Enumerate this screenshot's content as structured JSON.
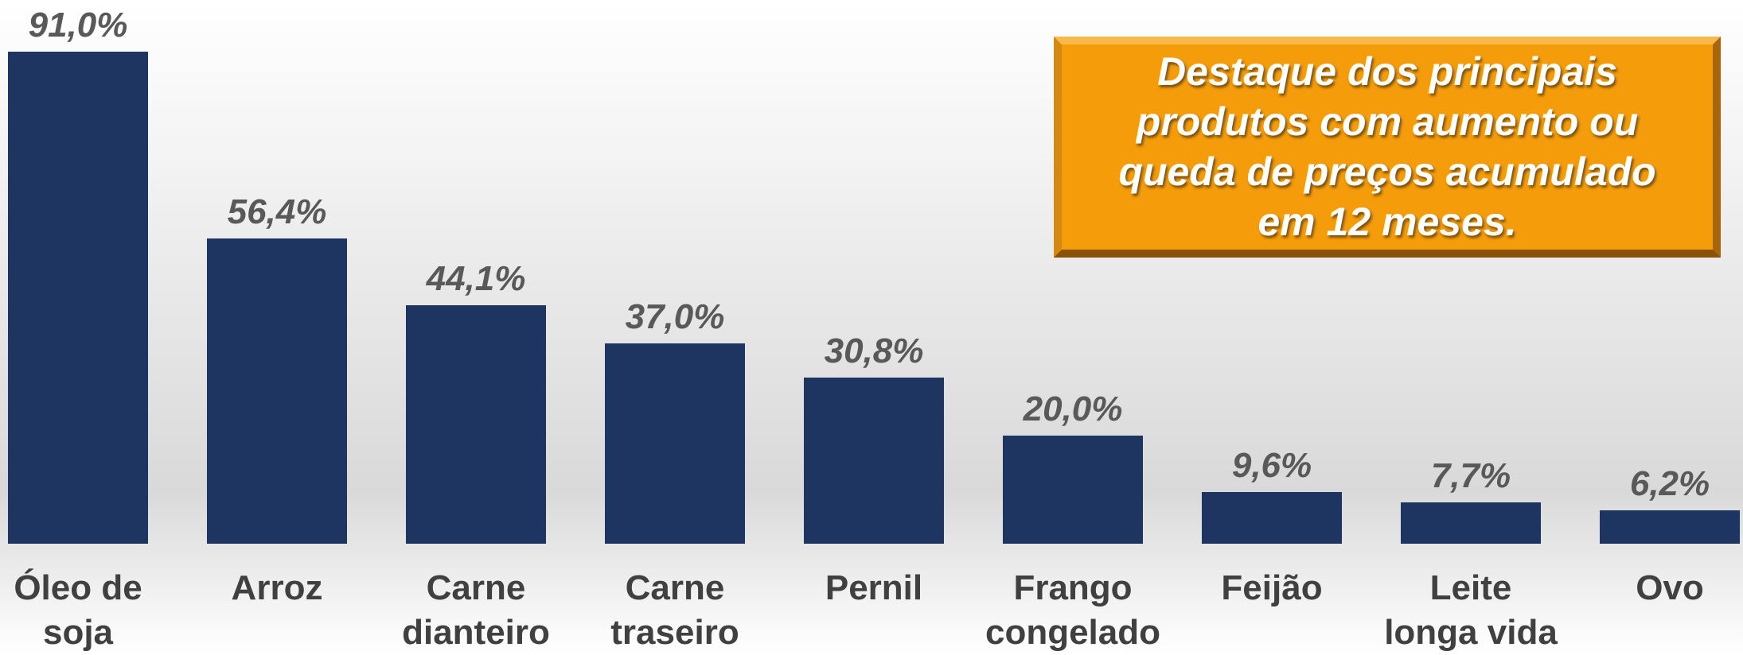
{
  "chart_data": {
    "type": "bar",
    "categories": [
      "Óleo de soja",
      "Arroz",
      "Carne dianteiro",
      "Carne traseiro",
      "Pernil",
      "Frango congelado",
      "Feijão",
      "Leite longa vida",
      "Ovo"
    ],
    "values": [
      91.0,
      56.4,
      44.1,
      37.0,
      30.8,
      20.0,
      9.6,
      7.7,
      6.2
    ],
    "value_labels": [
      "91,0%",
      "56,4%",
      "44,1%",
      "37,0%",
      "30,8%",
      "20,0%",
      "9,6%",
      "7,7%",
      "6,2%"
    ],
    "color": "#1f3561",
    "annotation": "Destaque dos principais produtos com aumento ou queda de preços acumulado em 12 meses."
  }
}
